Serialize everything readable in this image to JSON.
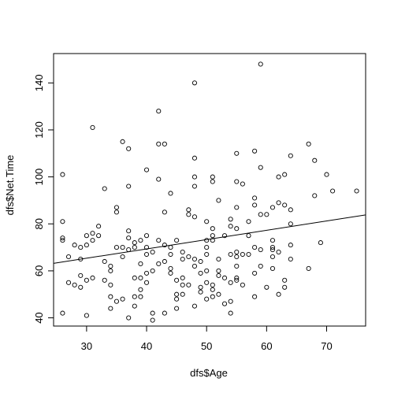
{
  "chart_data": {
    "type": "scatter",
    "title": "",
    "xlabel": "dfs$Age",
    "ylabel": "dfs$Net.Time",
    "xlim": [
      24.5,
      76.5
    ],
    "ylim": [
      36.5,
      152.5
    ],
    "xticks": [
      30,
      40,
      50,
      60,
      70
    ],
    "yticks": [
      40,
      60,
      80,
      100,
      120,
      140
    ],
    "grid": false,
    "legend": "none",
    "marker": "open-circle",
    "colors": {
      "points": "#000000",
      "line": "#000000",
      "frame": "#000000",
      "background": "#ffffff"
    },
    "regression_line": {
      "x": [
        24.5,
        76.5
      ],
      "y": [
        63.2,
        83.8
      ]
    },
    "points": [
      [
        26,
        101
      ],
      [
        26,
        81
      ],
      [
        26,
        74
      ],
      [
        26,
        73
      ],
      [
        26,
        42
      ],
      [
        27,
        66
      ],
      [
        27,
        55
      ],
      [
        28,
        71
      ],
      [
        28,
        54
      ],
      [
        29,
        70
      ],
      [
        29,
        65
      ],
      [
        29,
        58
      ],
      [
        29,
        53
      ],
      [
        30,
        75
      ],
      [
        30,
        71
      ],
      [
        30,
        56
      ],
      [
        30,
        41
      ],
      [
        31,
        121
      ],
      [
        31,
        76
      ],
      [
        31,
        73
      ],
      [
        31,
        57
      ],
      [
        32,
        79
      ],
      [
        32,
        75
      ],
      [
        33,
        95
      ],
      [
        33,
        64
      ],
      [
        33,
        56
      ],
      [
        34,
        62
      ],
      [
        34,
        60
      ],
      [
        34,
        54
      ],
      [
        34,
        49
      ],
      [
        34,
        44
      ],
      [
        35,
        87
      ],
      [
        35,
        85
      ],
      [
        35,
        70
      ],
      [
        35,
        47
      ],
      [
        36,
        115
      ],
      [
        36,
        70
      ],
      [
        36,
        66
      ],
      [
        36,
        48
      ],
      [
        37,
        112
      ],
      [
        37,
        96
      ],
      [
        37,
        77
      ],
      [
        37,
        74
      ],
      [
        37,
        69
      ],
      [
        37,
        40
      ],
      [
        38,
        72
      ],
      [
        38,
        70
      ],
      [
        38,
        57
      ],
      [
        38,
        49
      ],
      [
        38,
        45
      ],
      [
        39,
        73
      ],
      [
        39,
        63
      ],
      [
        39,
        57
      ],
      [
        39,
        52
      ],
      [
        39,
        49
      ],
      [
        40,
        103
      ],
      [
        40,
        75
      ],
      [
        40,
        70
      ],
      [
        40,
        67
      ],
      [
        40,
        59
      ],
      [
        40,
        55
      ],
      [
        41,
        68
      ],
      [
        41,
        60
      ],
      [
        41,
        42
      ],
      [
        41,
        39
      ],
      [
        42,
        128
      ],
      [
        42,
        114
      ],
      [
        42,
        99
      ],
      [
        42,
        73
      ],
      [
        42,
        63
      ],
      [
        43,
        114
      ],
      [
        43,
        85
      ],
      [
        43,
        71
      ],
      [
        43,
        64
      ],
      [
        43,
        42
      ],
      [
        44,
        93
      ],
      [
        44,
        70
      ],
      [
        44,
        67
      ],
      [
        44,
        61
      ],
      [
        44,
        59
      ],
      [
        45,
        73
      ],
      [
        45,
        56
      ],
      [
        45,
        50
      ],
      [
        45,
        48
      ],
      [
        45,
        44
      ],
      [
        46,
        68
      ],
      [
        46,
        65
      ],
      [
        46,
        57
      ],
      [
        46,
        54
      ],
      [
        46,
        50
      ],
      [
        47,
        86
      ],
      [
        47,
        84
      ],
      [
        47,
        66
      ],
      [
        47,
        54
      ],
      [
        48,
        140
      ],
      [
        48,
        108
      ],
      [
        48,
        100
      ],
      [
        48,
        96
      ],
      [
        48,
        83
      ],
      [
        48,
        65
      ],
      [
        48,
        62
      ],
      [
        48,
        45
      ],
      [
        49,
        64
      ],
      [
        49,
        59
      ],
      [
        49,
        53
      ],
      [
        49,
        51
      ],
      [
        50,
        81
      ],
      [
        50,
        73
      ],
      [
        50,
        70
      ],
      [
        50,
        67
      ],
      [
        50,
        60
      ],
      [
        50,
        55
      ],
      [
        50,
        48
      ],
      [
        51,
        100
      ],
      [
        51,
        98
      ],
      [
        51,
        78
      ],
      [
        51,
        75
      ],
      [
        51,
        73
      ],
      [
        51,
        54
      ],
      [
        51,
        52
      ],
      [
        51,
        49
      ],
      [
        52,
        90
      ],
      [
        52,
        65
      ],
      [
        52,
        60
      ],
      [
        52,
        58
      ],
      [
        52,
        50
      ],
      [
        53,
        75
      ],
      [
        53,
        57
      ],
      [
        53,
        46
      ],
      [
        54,
        82
      ],
      [
        54,
        79
      ],
      [
        54,
        67
      ],
      [
        54,
        55
      ],
      [
        54,
        47
      ],
      [
        54,
        42
      ],
      [
        55,
        110
      ],
      [
        55,
        98
      ],
      [
        55,
        87
      ],
      [
        55,
        78
      ],
      [
        55,
        68
      ],
      [
        55,
        66
      ],
      [
        55,
        62
      ],
      [
        55,
        57
      ],
      [
        55,
        56
      ],
      [
        56,
        97
      ],
      [
        56,
        67
      ],
      [
        56,
        54
      ],
      [
        57,
        81
      ],
      [
        57,
        75
      ],
      [
        57,
        67
      ],
      [
        58,
        111
      ],
      [
        58,
        91
      ],
      [
        58,
        88
      ],
      [
        58,
        70
      ],
      [
        58,
        59
      ],
      [
        58,
        49
      ],
      [
        59,
        148
      ],
      [
        59,
        104
      ],
      [
        59,
        84
      ],
      [
        59,
        69
      ],
      [
        59,
        62
      ],
      [
        60,
        84
      ],
      [
        60,
        53
      ],
      [
        61,
        87
      ],
      [
        61,
        73
      ],
      [
        61,
        70
      ],
      [
        61,
        69
      ],
      [
        61,
        66
      ],
      [
        61,
        61
      ],
      [
        62,
        100
      ],
      [
        62,
        89
      ],
      [
        62,
        68
      ],
      [
        62,
        50
      ],
      [
        63,
        101
      ],
      [
        63,
        88
      ],
      [
        63,
        56
      ],
      [
        63,
        53
      ],
      [
        64,
        109
      ],
      [
        64,
        86
      ],
      [
        64,
        80
      ],
      [
        64,
        71
      ],
      [
        64,
        65
      ],
      [
        67,
        114
      ],
      [
        67,
        61
      ],
      [
        68,
        107
      ],
      [
        68,
        92
      ],
      [
        69,
        72
      ],
      [
        70,
        101
      ],
      [
        71,
        94
      ],
      [
        75,
        94
      ]
    ]
  }
}
